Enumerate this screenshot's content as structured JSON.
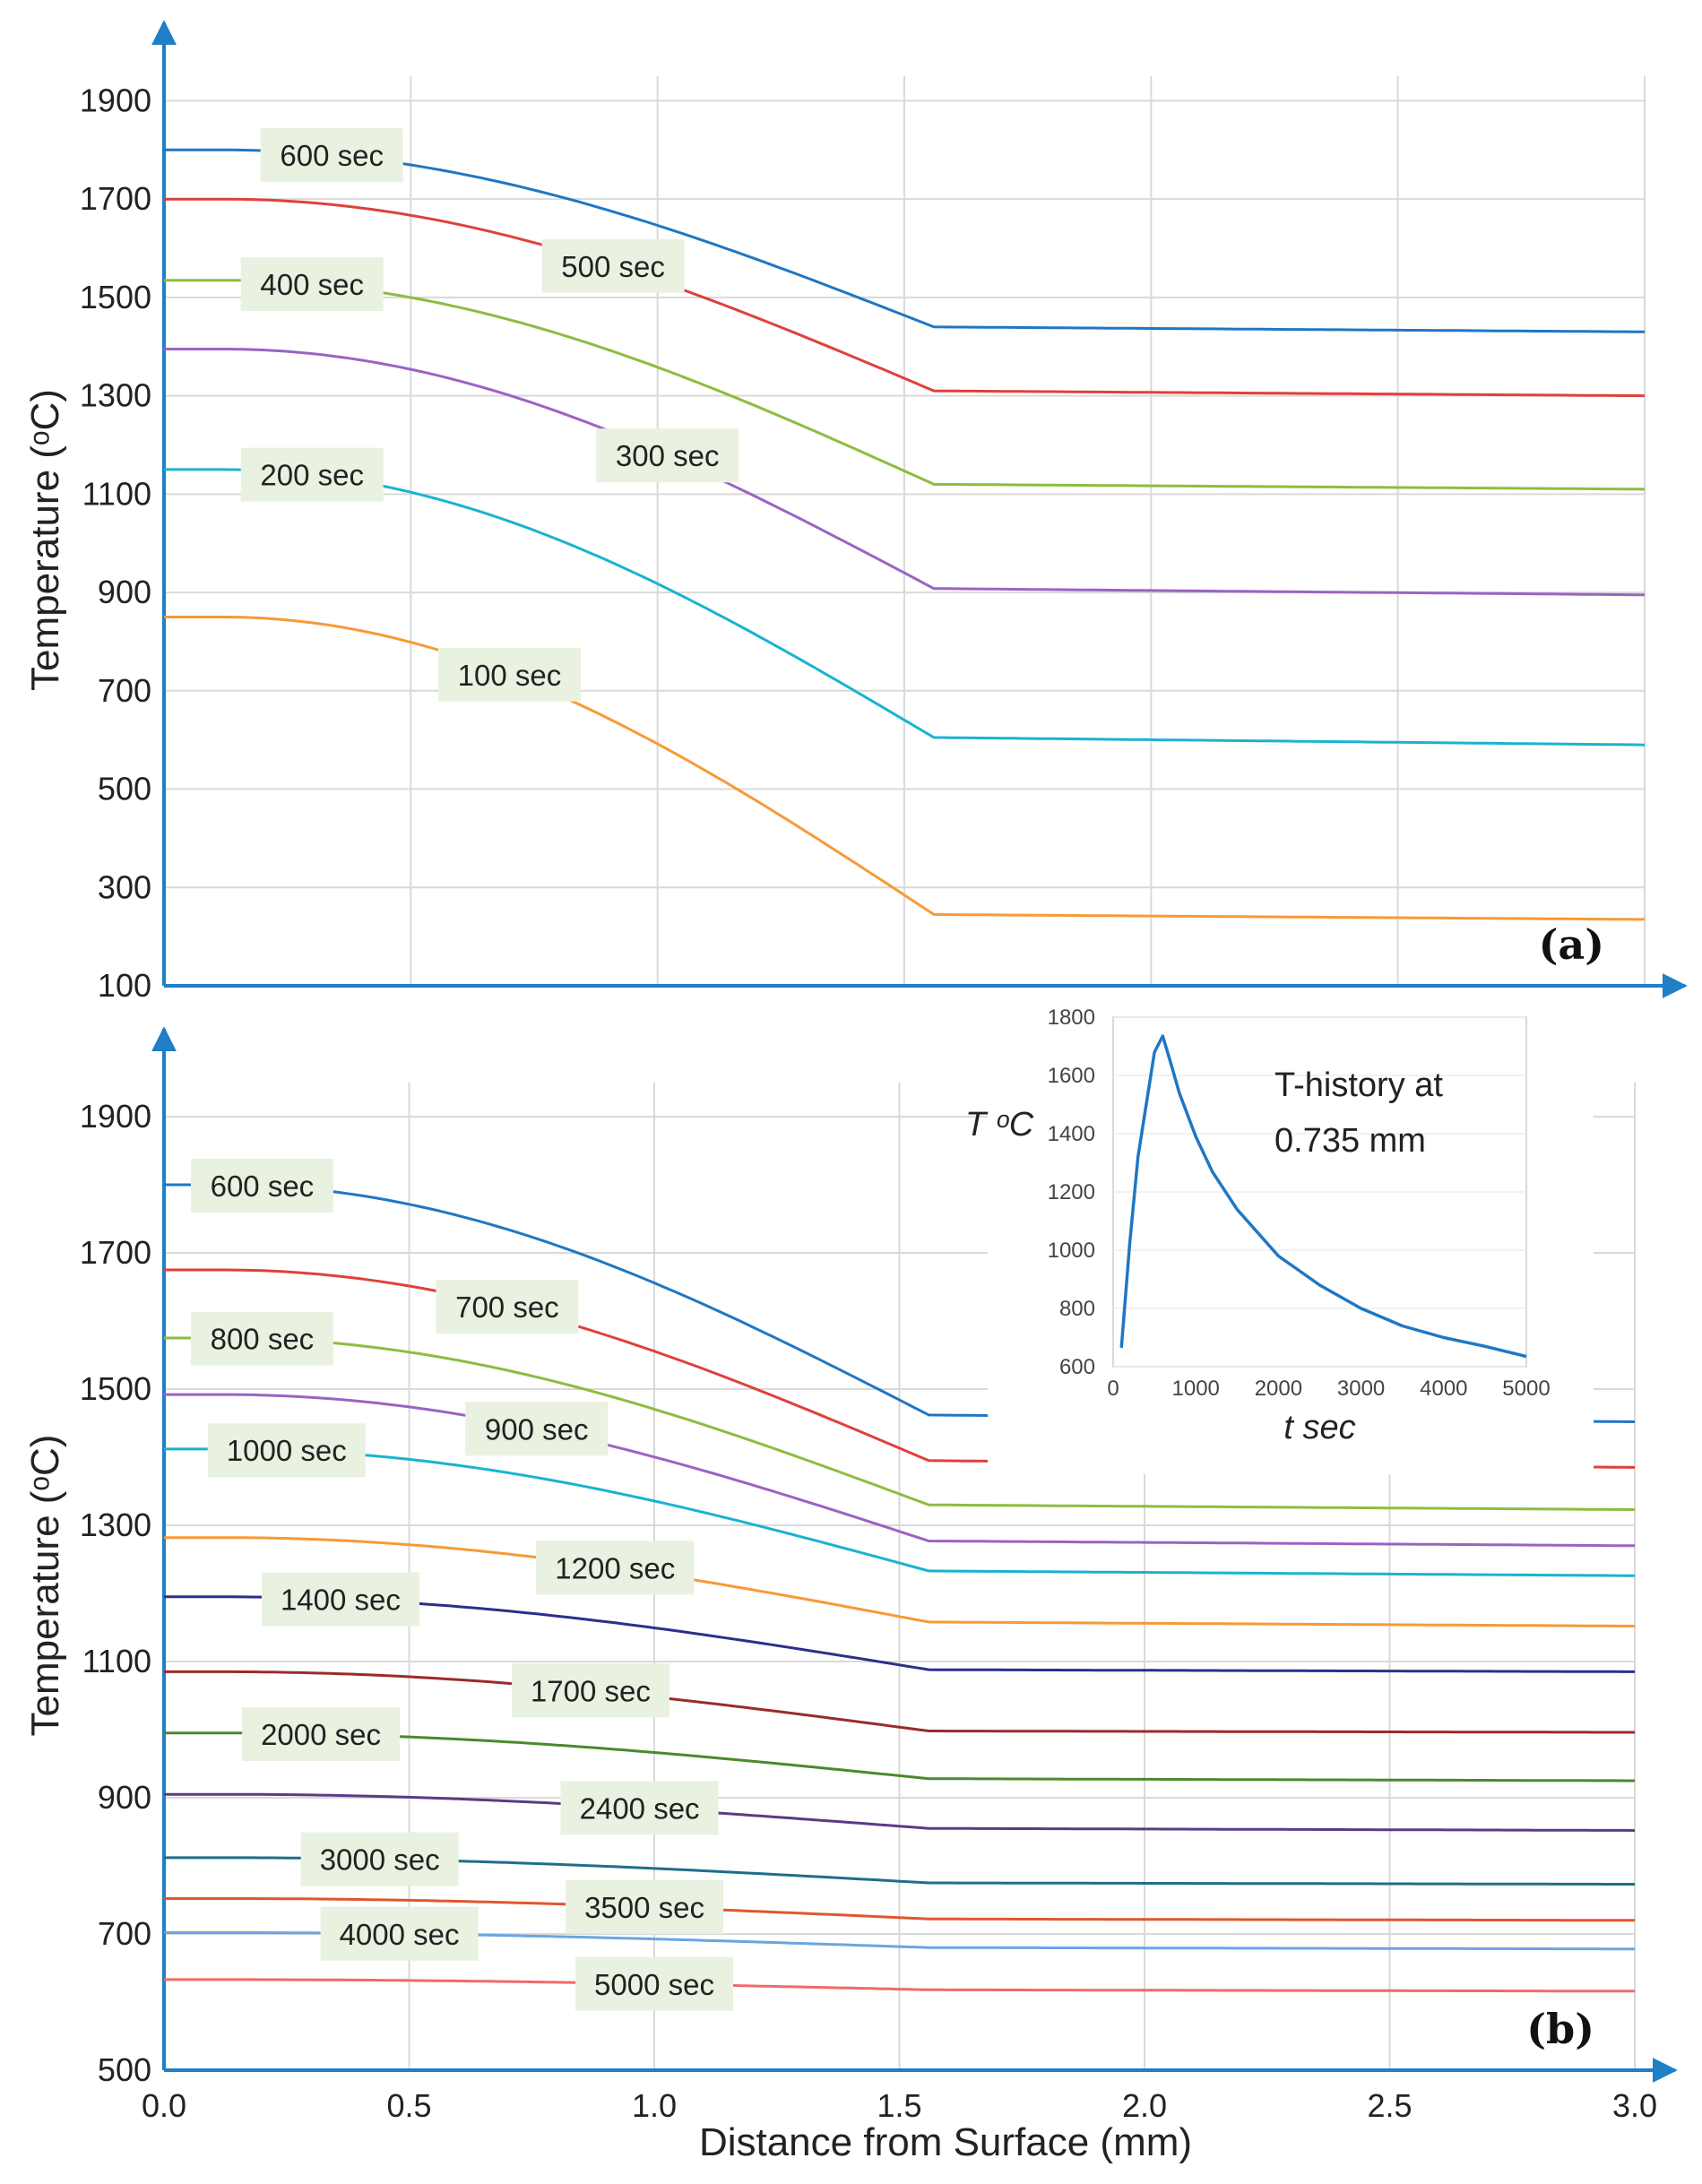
{
  "figure": {
    "xlabel": "Distance from Surface (mm)",
    "x_ticks": [
      "0.0",
      "0.5",
      "1.0",
      "1.5",
      "2.0",
      "2.5",
      "3.0"
    ],
    "colors": {
      "axis": "#1f7fc7",
      "grid": "#d9d9d9",
      "label_box": "#e9f1e1"
    }
  },
  "chart_data": [
    {
      "id": "a",
      "type": "line",
      "panel_label": "(a)",
      "ylabel": "Temperature (ᵒC)",
      "xlim": [
        0,
        3.0
      ],
      "ylim": [
        100,
        1950
      ],
      "y_ticks": [
        "100",
        "300",
        "500",
        "700",
        "900",
        "1100",
        "1300",
        "1500",
        "1700",
        "1900"
      ],
      "shape": {
        "flat_to": 0.12,
        "knee_x": 1.56
      },
      "series": [
        {
          "name": "600 sec",
          "color": "#1f77c4",
          "t0": 1800,
          "t_knee": 1440,
          "t_end": 1430,
          "label_at": 0.34
        },
        {
          "name": "500 sec",
          "color": "#e0403a",
          "t0": 1700,
          "t_knee": 1310,
          "t_end": 1300,
          "label_at": 0.91
        },
        {
          "name": "400 sec",
          "color": "#8cbd3f",
          "t0": 1535,
          "t_knee": 1120,
          "t_end": 1110,
          "label_at": 0.3
        },
        {
          "name": "300 sec",
          "color": "#9b63c4",
          "t0": 1395,
          "t_knee": 908,
          "t_end": 895,
          "label_at": 1.02
        },
        {
          "name": "200 sec",
          "color": "#19b3d1",
          "t0": 1150,
          "t_knee": 605,
          "t_end": 590,
          "label_at": 0.3
        },
        {
          "name": "100 sec",
          "color": "#f79a35",
          "t0": 850,
          "t_knee": 245,
          "t_end": 235,
          "label_at": 0.7
        }
      ]
    },
    {
      "id": "b",
      "type": "line",
      "panel_label": "(b)",
      "ylabel": "Temperature (ᵒC)",
      "xlim": [
        0,
        3.0
      ],
      "ylim": [
        500,
        1950
      ],
      "y_ticks": [
        "500",
        "700",
        "900",
        "1100",
        "1300",
        "1500",
        "1700",
        "1900"
      ],
      "shape": {
        "flat_to": 0.12,
        "knee_x": 1.56
      },
      "series": [
        {
          "name": "600 sec",
          "color": "#1f77c4",
          "t0": 1800,
          "t_knee": 1462,
          "t_end": 1452,
          "label_at": 0.2
        },
        {
          "name": "700 sec",
          "color": "#e0403a",
          "t0": 1675,
          "t_knee": 1395,
          "t_end": 1385,
          "label_at": 0.7
        },
        {
          "name": "800 sec",
          "color": "#8cbd3f",
          "t0": 1575,
          "t_knee": 1330,
          "t_end": 1323,
          "label_at": 0.2
        },
        {
          "name": "900 sec",
          "color": "#9b63c4",
          "t0": 1492,
          "t_knee": 1277,
          "t_end": 1270,
          "label_at": 0.76
        },
        {
          "name": "1000 sec",
          "color": "#19b3d1",
          "t0": 1412,
          "t_knee": 1233,
          "t_end": 1226,
          "label_at": 0.25
        },
        {
          "name": "1200 sec",
          "color": "#f79a35",
          "t0": 1282,
          "t_knee": 1158,
          "t_end": 1152,
          "label_at": 0.92
        },
        {
          "name": "1400 sec",
          "color": "#2b2f8a",
          "t0": 1195,
          "t_knee": 1088,
          "t_end": 1085,
          "label_at": 0.36
        },
        {
          "name": "1700 sec",
          "color": "#9c2a2a",
          "t0": 1085,
          "t_knee": 998,
          "t_end": 996,
          "label_at": 0.87
        },
        {
          "name": "2000 sec",
          "color": "#4a8a2e",
          "t0": 995,
          "t_knee": 928,
          "t_end": 925,
          "label_at": 0.32
        },
        {
          "name": "2400 sec",
          "color": "#5a3b86",
          "t0": 905,
          "t_knee": 855,
          "t_end": 852,
          "label_at": 0.97
        },
        {
          "name": "3000 sec",
          "color": "#1f6e8a",
          "t0": 812,
          "t_knee": 775,
          "t_end": 773,
          "label_at": 0.44
        },
        {
          "name": "3500 sec",
          "color": "#e0572c",
          "t0": 752,
          "t_knee": 722,
          "t_end": 720,
          "label_at": 0.98
        },
        {
          "name": "4000 sec",
          "color": "#6aa5e3",
          "t0": 702,
          "t_knee": 680,
          "t_end": 678,
          "label_at": 0.48
        },
        {
          "name": "5000 sec",
          "color": "#f06a6a",
          "t0": 633,
          "t_knee": 618,
          "t_end": 616,
          "label_at": 1.0
        }
      ]
    },
    {
      "id": "inset",
      "type": "line",
      "title_lines": [
        "T-history at",
        "0.735 mm"
      ],
      "ylabel": "T ᵒC",
      "xlabel": "t sec",
      "xlim": [
        0,
        5000
      ],
      "ylim": [
        600,
        1800
      ],
      "x_ticks": [
        "0",
        "1000",
        "2000",
        "3000",
        "4000",
        "5000"
      ],
      "y_ticks": [
        "600",
        "800",
        "1000",
        "1200",
        "1400",
        "1600",
        "1800"
      ],
      "series": [
        {
          "name": "T-history",
          "color": "#1f77c4",
          "x": [
            100,
            200,
            300,
            400,
            500,
            600,
            700,
            800,
            1000,
            1200,
            1500,
            2000,
            2500,
            3000,
            3500,
            4000,
            4500,
            5000
          ],
          "y": [
            665,
            1020,
            1320,
            1500,
            1680,
            1735,
            1640,
            1540,
            1390,
            1270,
            1140,
            980,
            880,
            800,
            740,
            700,
            670,
            635
          ]
        }
      ]
    }
  ]
}
